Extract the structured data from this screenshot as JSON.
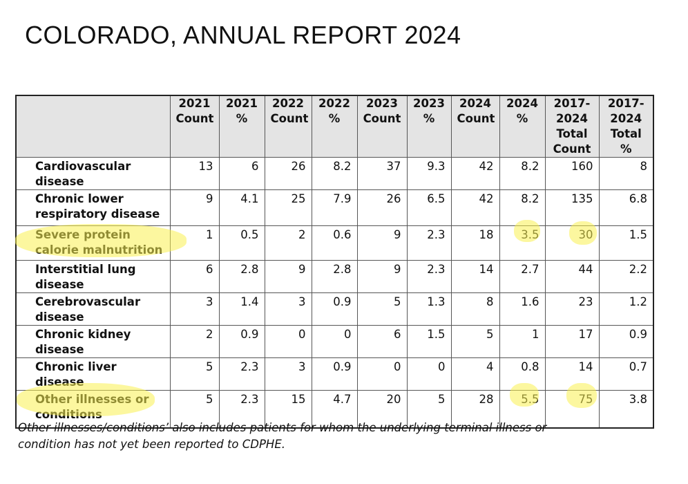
{
  "title": "COLORADO, ANNUAL REPORT 2024",
  "table": {
    "header": [
      [],
      [
        "2021",
        "Count"
      ],
      [
        "2021",
        "%"
      ],
      [
        "2022",
        "Count"
      ],
      [
        "2022",
        "%"
      ],
      [
        "2023",
        "Count"
      ],
      [
        "2023",
        "%"
      ],
      [
        "2024",
        "Count"
      ],
      [
        "2024",
        "%"
      ],
      [
        "2017-",
        "2024",
        "Total",
        "Count"
      ],
      [
        "2017-",
        "2024",
        "Total",
        "%"
      ]
    ],
    "rows": [
      {
        "label": [
          "Cardiovascular",
          "disease"
        ],
        "values": [
          13,
          6,
          26,
          8.2,
          37,
          9.3,
          42,
          8.2,
          160,
          8
        ]
      },
      {
        "label": [
          "Chronic lower",
          "respiratory disease"
        ],
        "values": [
          9,
          4.1,
          25,
          7.9,
          26,
          6.5,
          42,
          8.2,
          135,
          6.8
        ]
      },
      {
        "label": [
          "Severe protein",
          "calorie malnutrition"
        ],
        "values": [
          1,
          0.5,
          2,
          0.6,
          9,
          2.3,
          18,
          3.5,
          30,
          1.5
        ]
      },
      {
        "label": [
          "Interstitial lung",
          "disease"
        ],
        "values": [
          6,
          2.8,
          9,
          2.8,
          9,
          2.3,
          14,
          2.7,
          44,
          2.2
        ]
      },
      {
        "label": [
          "Cerebrovascular",
          "disease"
        ],
        "values": [
          3,
          1.4,
          3,
          0.9,
          5,
          1.3,
          8,
          1.6,
          23,
          1.2
        ]
      },
      {
        "label": [
          "Chronic kidney",
          "disease"
        ],
        "values": [
          2,
          0.9,
          0,
          0,
          6,
          1.5,
          5,
          1,
          17,
          0.9
        ]
      },
      {
        "label": [
          "Chronic liver",
          "disease"
        ],
        "values": [
          5,
          2.3,
          3,
          0.9,
          0,
          0,
          4,
          0.8,
          14,
          0.7
        ]
      },
      {
        "label": [
          "Other illnesses or",
          "conditions"
        ],
        "values": [
          5,
          2.3,
          15,
          4.7,
          20,
          5,
          28,
          5.5,
          75,
          3.8
        ]
      }
    ]
  },
  "footnote": [
    "Other illnesses/conditions’ also includes patients for whom the underlying terminal illness or",
    "condition has not yet been reported to CDPHE."
  ]
}
